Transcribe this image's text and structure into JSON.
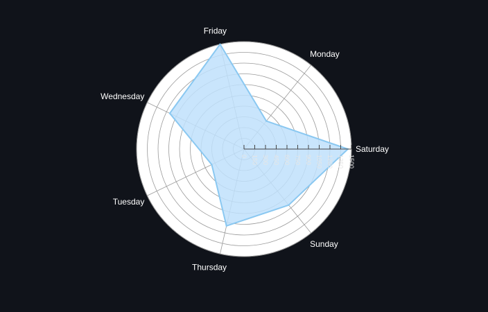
{
  "chart_data": {
    "type": "radar",
    "title": "",
    "categories": [
      "Saturday",
      "Monday",
      "Friday",
      "Wednesday",
      "Tuesday",
      "Thursday",
      "Sunday"
    ],
    "series": [
      {
        "values": [
          1450,
          500,
          1500,
          1150,
          500,
          1100,
          1000
        ]
      }
    ],
    "rlim": [
      0,
      1500
    ],
    "ticks": [
      0,
      150,
      300,
      450,
      600,
      750,
      900,
      1050,
      1200,
      1350,
      1500
    ],
    "tick_labels": [
      "0",
      "150",
      "300",
      "450",
      "600",
      "750",
      "900",
      "1050",
      "1200",
      "1350",
      "1500"
    ],
    "grid": true,
    "legend": "none",
    "colors": {
      "background": "#10131a",
      "plot_fill": "#ffffff",
      "grid": "#999999",
      "area_fill": "#bfe1fb",
      "area_stroke": "#8ac8f1",
      "axis_text": "#ffffff"
    }
  }
}
